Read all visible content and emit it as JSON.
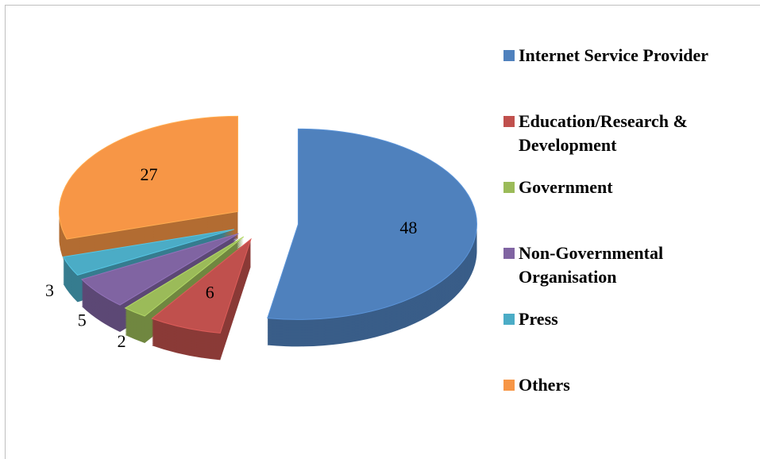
{
  "chart_data": {
    "type": "pie",
    "categories": [
      "Internet Service Provider",
      "Education/Research & Development",
      "Government",
      "Non-Governmental Organisation",
      "Press",
      "Others"
    ],
    "values": [
      48,
      6,
      2,
      5,
      3,
      27
    ],
    "colors": [
      "#4f81bd",
      "#c0504d",
      "#9bbb59",
      "#8064a2",
      "#4bacc6",
      "#f79646"
    ],
    "legend": "right"
  }
}
